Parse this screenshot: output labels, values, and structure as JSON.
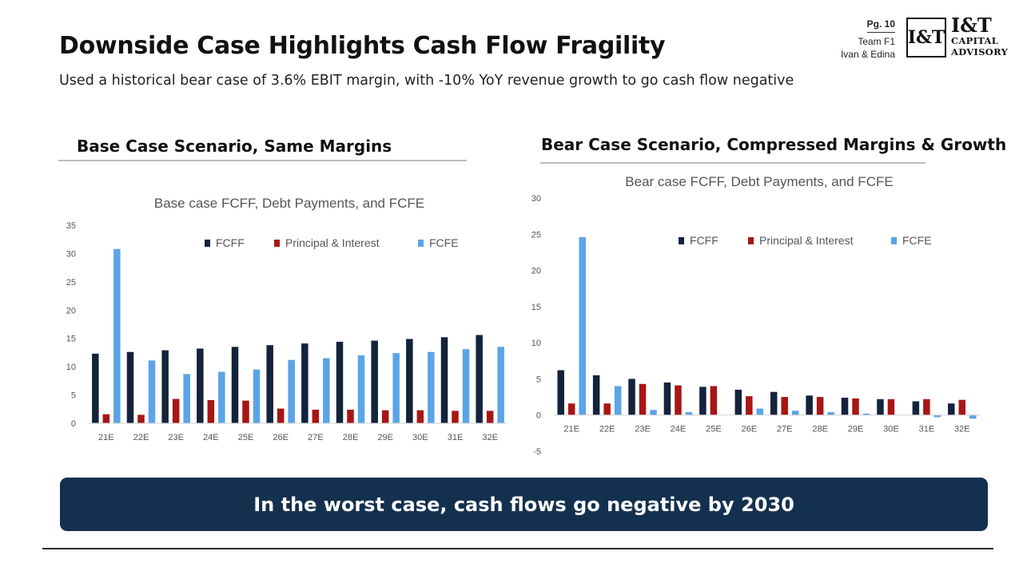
{
  "header": {
    "title": "Downside Case Highlights Cash Flow Fragility",
    "subtitle": "Used a historical bear case of 3.6% EBIT margin, with -10% YoY revenue growth to go cash flow negative",
    "page": "Pg. 10",
    "team": "Team F1",
    "authors": "Ivan & Edina",
    "logo": {
      "mark": "I&T",
      "name_line1": "I&T",
      "name_line2": "CAPITAL",
      "name_line3": "ADVISORY"
    }
  },
  "sections": {
    "left_title": "Base Case Scenario, Same Margins",
    "right_title": "Bear Case Scenario, Compressed Margins & Growth"
  },
  "colors": {
    "FCFF": "#13233b",
    "Principal & Interest": "#a91515",
    "FCFE": "#5ba4e6"
  },
  "chart_data": [
    {
      "type": "bar",
      "title": "Base case FCFF, Debt Payments, and FCFE",
      "xlabel": "",
      "ylabel": "",
      "categories": [
        "21E",
        "22E",
        "23E",
        "24E",
        "25E",
        "26E",
        "27E",
        "28E",
        "29E",
        "30E",
        "31E",
        "32E"
      ],
      "ylim": [
        0,
        35
      ],
      "yticks": [
        0,
        5,
        10,
        15,
        20,
        25,
        30,
        35
      ],
      "legend": "top",
      "grid": false,
      "series": [
        {
          "name": "FCFF",
          "values": [
            12.3,
            12.6,
            12.9,
            13.2,
            13.5,
            13.8,
            14.1,
            14.4,
            14.6,
            14.9,
            15.2,
            15.6
          ]
        },
        {
          "name": "Principal & Interest",
          "values": [
            1.6,
            1.5,
            4.3,
            4.1,
            4.0,
            2.6,
            2.4,
            2.4,
            2.3,
            2.3,
            2.2,
            2.2
          ]
        },
        {
          "name": "FCFE",
          "values": [
            30.8,
            11.1,
            8.7,
            9.1,
            9.5,
            11.2,
            11.5,
            12.0,
            12.4,
            12.6,
            13.1,
            13.5
          ]
        }
      ]
    },
    {
      "type": "bar",
      "title": "Bear case FCFF, Debt Payments, and FCFE",
      "xlabel": "",
      "ylabel": "",
      "categories": [
        "21E",
        "22E",
        "23E",
        "24E",
        "25E",
        "26E",
        "27E",
        "28E",
        "29E",
        "30E",
        "31E",
        "32E"
      ],
      "ylim": [
        -5,
        30
      ],
      "yticks": [
        -5,
        0,
        5,
        10,
        15,
        20,
        25,
        30
      ],
      "legend": "top",
      "grid": false,
      "series": [
        {
          "name": "FCFF",
          "values": [
            6.2,
            5.5,
            5.0,
            4.5,
            3.9,
            3.5,
            3.2,
            2.7,
            2.4,
            2.2,
            1.9,
            1.6
          ]
        },
        {
          "name": "Principal & Interest",
          "values": [
            1.6,
            1.6,
            4.3,
            4.1,
            4.0,
            2.6,
            2.5,
            2.5,
            2.3,
            2.2,
            2.2,
            2.1
          ]
        },
        {
          "name": "FCFE",
          "values": [
            24.6,
            4.0,
            0.7,
            0.4,
            0.0,
            0.9,
            0.6,
            0.4,
            0.2,
            0.0,
            -0.3,
            -0.5
          ]
        }
      ]
    }
  ],
  "banner": {
    "text": "In the worst case, cash flows go negative by 2030"
  }
}
